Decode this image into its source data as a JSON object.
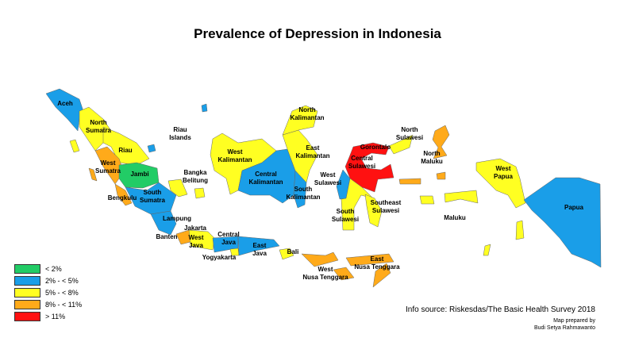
{
  "title": "Prevalence of Depression in Indonesia",
  "legend": [
    {
      "label": "< 2%",
      "color": "#22cc66"
    },
    {
      "label": "2% - < 5%",
      "color": "#1a9ee8"
    },
    {
      "label": "5% - < 8%",
      "color": "#ffff22"
    },
    {
      "label": "8% - < 11%",
      "color": "#ffaa1a"
    },
    {
      "label": "> 11%",
      "color": "#ff1111"
    }
  ],
  "provinces": [
    {
      "name": "Aceh",
      "category": "2% - < 5%"
    },
    {
      "name": "North Sumatra",
      "category": "5% - < 8%"
    },
    {
      "name": "Riau",
      "category": "5% - < 8%"
    },
    {
      "name": "Riau Islands",
      "category": "5% - < 8%"
    },
    {
      "name": "West Sumatra",
      "category": "8% - < 11%"
    },
    {
      "name": "Jambi",
      "category": "< 2%"
    },
    {
      "name": "Bengkulu",
      "category": "8% - < 11%"
    },
    {
      "name": "South Sumatra",
      "category": "2% - < 5%"
    },
    {
      "name": "Lampung",
      "category": "2% - < 5%"
    },
    {
      "name": "Bangka Belitung",
      "category": "5% - < 8%"
    },
    {
      "name": "Banten",
      "category": "8% - < 11%"
    },
    {
      "name": "Jakarta",
      "category": "5% - < 8%"
    },
    {
      "name": "West Java",
      "category": "5% - < 8%"
    },
    {
      "name": "Central Java",
      "category": "2% - < 5%"
    },
    {
      "name": "Yogyakarta",
      "category": "5% - < 8%"
    },
    {
      "name": "East Java",
      "category": "2% - < 5%"
    },
    {
      "name": "Bali",
      "category": "5% - < 8%"
    },
    {
      "name": "West Nusa Tenggara",
      "category": "8% - < 11%"
    },
    {
      "name": "East Nusa Tenggara",
      "category": "8% - < 11%"
    },
    {
      "name": "West Kalimantan",
      "category": "5% - < 8%"
    },
    {
      "name": "Central Kalimantan",
      "category": "2% - < 5%"
    },
    {
      "name": "South Kalimantan",
      "category": "2% - < 5%"
    },
    {
      "name": "East Kalimantan",
      "category": "5% - < 8%"
    },
    {
      "name": "North Kalimantan",
      "category": "5% - < 8%"
    },
    {
      "name": "West Sulawesi",
      "category": "2% - < 5%"
    },
    {
      "name": "Central Sulawesi",
      "category": "> 11%"
    },
    {
      "name": "Gorontalo",
      "category": "> 11%"
    },
    {
      "name": "North Sulawesi",
      "category": "5% - < 8%"
    },
    {
      "name": "South Sulawesi",
      "category": "5% - < 8%"
    },
    {
      "name": "Southeast Sulawesi",
      "category": "5% - < 8%"
    },
    {
      "name": "North Maluku",
      "category": "8% - < 11%"
    },
    {
      "name": "Maluku",
      "category": "5% - < 8%"
    },
    {
      "name": "West Papua",
      "category": "5% - < 8%"
    },
    {
      "name": "Papua",
      "category": "2% - < 5%"
    }
  ],
  "labels": {
    "aceh": [
      "Aceh"
    ],
    "north_sumatra": [
      "North",
      "Sumatra"
    ],
    "riau": [
      "Riau"
    ],
    "riau_islands": [
      "Riau",
      "Islands"
    ],
    "west_sumatra": [
      "West",
      "Sumatra"
    ],
    "jambi": [
      "Jambi"
    ],
    "bengkulu": [
      "Bengkulu"
    ],
    "south_sumatra": [
      "South",
      "Sumatra"
    ],
    "lampung": [
      "Lampung"
    ],
    "bangka_belitung": [
      "Bangka",
      "Belitung"
    ],
    "jakarta": [
      "Jakarta"
    ],
    "banten": [
      "Banten"
    ],
    "west_java": [
      "West",
      "Java"
    ],
    "central_java": [
      "Central",
      "Java"
    ],
    "yogyakarta": [
      "Yogyakarta"
    ],
    "east_java": [
      "East",
      "Java"
    ],
    "bali": [
      "Bali"
    ],
    "west_nusa_tenggara": [
      "West",
      "Nusa Tenggara"
    ],
    "east_nusa_tenggara": [
      "East",
      "Nusa Tenggara"
    ],
    "west_kalimantan": [
      "West",
      "Kalimantan"
    ],
    "central_kalimantan": [
      "Central",
      "Kalimantan"
    ],
    "south_kalimantan": [
      "South",
      "Kalimantan"
    ],
    "east_kalimantan": [
      "East",
      "Kalimantan"
    ],
    "north_kalimantan": [
      "North",
      "Kalimantan"
    ],
    "west_sulawesi": [
      "West",
      "Sulawesi"
    ],
    "central_sulawesi": [
      "Central",
      "Sulawesi"
    ],
    "gorontalo": [
      "Gorontalo"
    ],
    "north_sulawesi": [
      "North",
      "Sulawesi"
    ],
    "south_sulawesi": [
      "South",
      "Sulawesi"
    ],
    "southeast_sulawesi": [
      "Southeast",
      "Sulawesi"
    ],
    "north_maluku": [
      "North",
      "Maluku"
    ],
    "maluku": [
      "Maluku"
    ],
    "west_papua": [
      "West",
      "Papua"
    ],
    "papua": [
      "Papua"
    ]
  },
  "source": "Info source: Riskesdas/The Basic Health Survey 2018",
  "credit": [
    "Map prepared by",
    "Budi Setya Rahmawanto"
  ]
}
